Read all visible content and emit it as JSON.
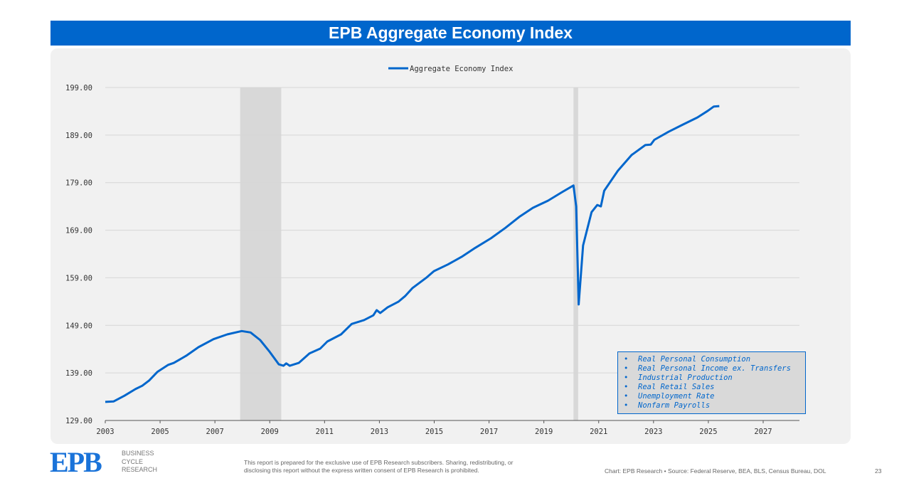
{
  "title": "EPB Aggregate Economy Index",
  "chart_data": {
    "type": "line",
    "title": "EPB Aggregate Economy Index",
    "xlabel": "",
    "ylabel": "",
    "xlim": [
      2003,
      2027.5
    ],
    "ylim": [
      129,
      199
    ],
    "x_ticks": [
      "2003",
      "2005",
      "2007",
      "2009",
      "2011",
      "2013",
      "2015",
      "2017",
      "2019",
      "2021",
      "2023",
      "2025",
      "2027"
    ],
    "y_ticks": [
      "129.00",
      "139.00",
      "149.00",
      "159.00",
      "169.00",
      "179.00",
      "189.00",
      "199.00"
    ],
    "grid": true,
    "legend": {
      "position": "top-center",
      "entries": [
        "Aggregate Economy Index"
      ]
    },
    "recessions": [
      [
        2007.92,
        2009.42
      ],
      [
        2020.08,
        2020.25
      ]
    ],
    "series": [
      {
        "name": "Aggregate Economy Index",
        "color": "#0066cc",
        "x": [
          2003.0,
          2003.3,
          2003.7,
          2004.1,
          2004.35,
          2004.6,
          2004.9,
          2005.3,
          2005.5,
          2005.95,
          2006.4,
          2006.95,
          2007.45,
          2007.98,
          2008.3,
          2008.65,
          2009.0,
          2009.33,
          2009.5,
          2009.6,
          2009.73,
          2010.06,
          2010.45,
          2010.84,
          2011.1,
          2011.6,
          2011.99,
          2012.44,
          2012.78,
          2012.9,
          2013.03,
          2013.3,
          2013.7,
          2013.95,
          2014.2,
          2014.73,
          2014.99,
          2015.5,
          2016.03,
          2016.5,
          2017.07,
          2017.6,
          2018.1,
          2018.6,
          2019.15,
          2019.66,
          2020.08,
          2020.18,
          2020.27,
          2020.43,
          2020.74,
          2020.95,
          2021.08,
          2021.2,
          2021.7,
          2022.2,
          2022.7,
          2022.9,
          2023.03,
          2023.55,
          2024.07,
          2024.6,
          2024.98,
          2025.2,
          2025.4
        ],
        "y": [
          132.9,
          133.0,
          134.2,
          135.6,
          136.3,
          137.4,
          139.2,
          140.7,
          141.1,
          142.6,
          144.4,
          146.1,
          147.1,
          147.8,
          147.5,
          145.9,
          143.4,
          140.8,
          140.5,
          141.0,
          140.5,
          141.1,
          143.1,
          144.1,
          145.6,
          147.1,
          149.3,
          150.1,
          151.1,
          152.2,
          151.6,
          152.8,
          154.0,
          155.2,
          156.8,
          159.1,
          160.4,
          161.8,
          163.5,
          165.3,
          167.3,
          169.5,
          171.8,
          173.7,
          175.2,
          177.0,
          178.4,
          174.0,
          153.4,
          165.8,
          172.8,
          174.3,
          174.0,
          177.3,
          181.5,
          184.8,
          186.9,
          187.0,
          188.0,
          189.7,
          191.2,
          192.7,
          194.1,
          195.0,
          195.1
        ]
      }
    ],
    "annotation_box": [
      "Real Personal Consumption",
      "Real Personal Income ex. Transfers",
      "Industrial Production",
      "Real Retail Sales",
      "Unemployment Rate",
      "Nonfarm Payrolls"
    ]
  },
  "footer": {
    "logo": "EPB",
    "logo_sub": [
      "BUSINESS",
      "CYCLE",
      "RESEARCH"
    ],
    "disclaimer_1": "This report is prepared for the exclusive use of EPB Research subscribers. Sharing, redistributing, or",
    "disclaimer_2": "disclosing this report without the express written consent of EPB Research is prohibited.",
    "source": "Chart: EPB Research  •  Source: Federal Reserve, BEA, BLS, Census Bureau, DOL",
    "page": "23"
  }
}
